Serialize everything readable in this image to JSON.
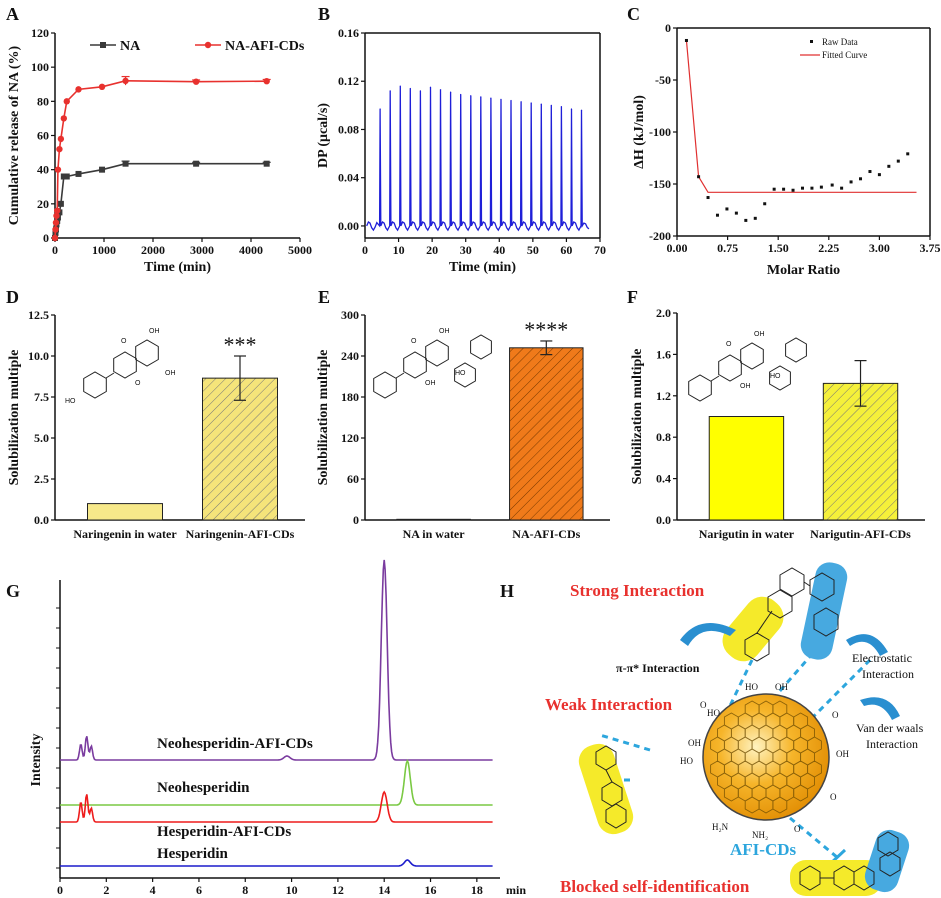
{
  "chart_data": [
    {
      "panel": "A",
      "type": "line",
      "xlabel": "Time (min)",
      "ylabel": "Cumulative release of NA (%)",
      "xlim": [
        0,
        5000
      ],
      "ylim": [
        0,
        120
      ],
      "xticks": [
        0,
        1000,
        2000,
        3000,
        4000,
        5000
      ],
      "yticks": [
        0,
        20,
        40,
        60,
        80,
        100,
        120
      ],
      "legend": "top-left",
      "series": [
        {
          "name": "NA",
          "color": "#3a3a3a",
          "marker": "square",
          "x": [
            0,
            10,
            20,
            30,
            45,
            60,
            90,
            120,
            180,
            240,
            480,
            960,
            1440,
            2880,
            4320
          ],
          "y": [
            0,
            3,
            5,
            8,
            10,
            12,
            15,
            20,
            36,
            36,
            37.5,
            40,
            43.5,
            43.5,
            43.5
          ],
          "err": [
            0,
            0,
            0,
            0,
            0,
            0,
            0,
            0,
            0,
            0,
            0,
            0,
            1.5,
            0.8,
            0.8
          ]
        },
        {
          "name": "NA-AFI-CDs",
          "color": "#e8312e",
          "marker": "circle",
          "x": [
            0,
            10,
            20,
            30,
            45,
            60,
            90,
            120,
            180,
            240,
            480,
            960,
            1440,
            2880,
            4320
          ],
          "y": [
            0,
            5,
            9,
            13,
            16,
            40,
            52,
            58,
            70,
            80,
            87,
            88.5,
            92,
            91.5,
            91.8
          ],
          "err": [
            0,
            0,
            0,
            0,
            0,
            0,
            0,
            0,
            0,
            0,
            0,
            0,
            2.5,
            1,
            1
          ]
        }
      ]
    },
    {
      "panel": "B",
      "type": "line",
      "xlabel": "Time (min)",
      "ylabel": "DP (μcal/s)",
      "xlim": [
        0,
        70
      ],
      "ylim": [
        -0.01,
        0.16
      ],
      "xticks": [
        0,
        10,
        20,
        30,
        40,
        50,
        60,
        70
      ],
      "yticks": [
        0.0,
        0.04,
        0.08,
        0.12,
        0.16
      ],
      "ytick_labels": [
        "0.00",
        "0.04",
        "0.08",
        "0.12",
        "0.16"
      ],
      "color": "#1f1fd8",
      "injection_times": [
        4.5,
        7.5,
        10.5,
        13.5,
        16.5,
        19.5,
        22.5,
        25.5,
        28.5,
        31.5,
        34.5,
        37.5,
        40.5,
        43.5,
        46.5,
        49.5,
        52.5,
        55.5,
        58.5,
        61.5,
        64.5
      ],
      "peak_heights": [
        0.097,
        0.112,
        0.116,
        0.114,
        0.112,
        0.115,
        0.113,
        0.111,
        0.109,
        0.108,
        0.107,
        0.106,
        0.105,
        0.104,
        0.103,
        0.102,
        0.101,
        0.1,
        0.099,
        0.097,
        0.096
      ]
    },
    {
      "panel": "C",
      "type": "scatter",
      "xlabel": "Molar Ratio",
      "ylabel": "ΔH (kJ/mol)",
      "xlim": [
        0,
        3.75
      ],
      "ylim": [
        -200,
        0
      ],
      "xticks": [
        0,
        0.75,
        1.5,
        2.25,
        3.0,
        3.75
      ],
      "xtick_labels": [
        "0.00",
        "0.75",
        "1.50",
        "2.25",
        "3.00",
        "3.75"
      ],
      "yticks": [
        -200,
        -150,
        -100,
        -50,
        0
      ],
      "legend": [
        "Raw Data",
        "Fitted Curve"
      ],
      "raw_data": {
        "x": [
          0.14,
          0.32,
          0.46,
          0.6,
          0.74,
          0.88,
          1.02,
          1.16,
          1.3,
          1.44,
          1.58,
          1.72,
          1.86,
          2.0,
          2.14,
          2.3,
          2.44,
          2.58,
          2.72,
          2.86,
          3.0,
          3.14,
          3.28,
          3.42
        ],
        "y": [
          -12,
          -143,
          -163,
          -180,
          -174,
          -178,
          -185,
          -183,
          -169,
          -155,
          -155,
          -156,
          -154,
          -154,
          -153,
          -151,
          -154,
          -148,
          -145,
          -138,
          -141,
          -133,
          -128,
          -121
        ]
      },
      "fitted_curve": {
        "x": [
          0.14,
          0.32,
          0.46,
          1.0,
          2.0,
          3.0,
          3.55
        ],
        "y": [
          -12,
          -143,
          -158,
          -158,
          -158,
          -158,
          -158
        ],
        "color": "#e03030"
      }
    },
    {
      "panel": "D",
      "type": "bar",
      "ylabel": "Solubilization multiple",
      "categories": [
        "Naringenin in water",
        "Naringenin-AFI-CDs"
      ],
      "values": [
        1.0,
        8.65
      ],
      "errors": [
        0,
        1.35
      ],
      "annotation": "***",
      "ylim": [
        0,
        12.5
      ],
      "yticks": [
        0,
        2.5,
        5.0,
        7.5,
        10.0,
        12.5
      ],
      "ytick_labels": [
        "0.0",
        "2.5",
        "5.0",
        "7.5",
        "10.0",
        "12.5"
      ],
      "colors": [
        "#f7e98a",
        "#f5e47a"
      ],
      "structure_labels": [
        "O",
        "OH",
        "O",
        "OH",
        "HO"
      ]
    },
    {
      "panel": "E",
      "type": "bar",
      "ylabel": "Solubilization multiple",
      "categories": [
        "NA in water",
        "NA-AFI-CDs"
      ],
      "values": [
        1.0,
        252
      ],
      "errors": [
        0,
        10
      ],
      "annotation": "****",
      "ylim": [
        0,
        300
      ],
      "yticks": [
        0,
        60,
        120,
        180,
        240,
        300
      ],
      "colors": [
        "#f07a1a",
        "#f07a1a"
      ],
      "structure_labels": [
        "O",
        "OH",
        "OH",
        "HO"
      ]
    },
    {
      "panel": "F",
      "type": "bar",
      "ylabel": "Solubilization multiple",
      "categories": [
        "Narigutin in water",
        "Narigutin-AFI-CDs"
      ],
      "values": [
        1.0,
        1.32
      ],
      "errors": [
        0,
        0.22
      ],
      "ylim": [
        0,
        2.0
      ],
      "yticks": [
        0,
        0.4,
        0.8,
        1.2,
        1.6,
        2.0
      ],
      "ytick_labels": [
        "0.0",
        "0.4",
        "0.8",
        "1.2",
        "1.6",
        "2.0"
      ],
      "colors": [
        "#ffff00",
        "#f5f03a"
      ],
      "structure_labels": [
        "O",
        "OH",
        "OH",
        "HO"
      ]
    },
    {
      "panel": "G",
      "type": "line",
      "xlabel": "min",
      "ylabel": "Intensity",
      "xlim": [
        0,
        19
      ],
      "xticks": [
        0,
        2,
        4,
        6,
        8,
        10,
        12,
        14,
        16,
        18
      ],
      "series": [
        {
          "name": "Neohesperidin-AFI-CDs",
          "color": "#7a3b9f",
          "peaks": [
            [
              0.9,
              0.08
            ],
            [
              1.15,
              0.12
            ],
            [
              1.35,
              0.07
            ],
            [
              9.8,
              0.02
            ],
            [
              14.0,
              1.0
            ]
          ]
        },
        {
          "name": "Neohesperidin",
          "color": "#7ac943",
          "peaks": [
            [
              15.0,
              0.22
            ]
          ]
        },
        {
          "name": "Hesperidin-AFI-CDs",
          "color": "#ee1c1c",
          "peaks": [
            [
              0.9,
              0.1
            ],
            [
              1.15,
              0.14
            ],
            [
              1.35,
              0.07
            ],
            [
              14.0,
              0.15
            ]
          ]
        },
        {
          "name": "Hesperidin",
          "color": "#1c1ccc",
          "peaks": [
            [
              15.0,
              0.03
            ]
          ]
        }
      ]
    }
  ],
  "panels": {
    "a": "A",
    "b": "B",
    "c": "C",
    "d": "D",
    "e": "E",
    "f": "F",
    "g": "G",
    "h": "H"
  },
  "schematic": {
    "title_strong": "Strong Interaction",
    "title_weak": "Weak Interaction",
    "title_blocked": "Blocked self-identification",
    "pi_interaction": "π-π* Interaction",
    "electrostatic_1": "Electrostatic",
    "electrostatic_2": "Interaction",
    "vdw_1": "Van der waals",
    "vdw_2": "Interaction",
    "particle_label": "AFI-CDs",
    "groups": [
      "HO",
      "HO",
      "OH",
      "OH",
      "HO",
      "OH",
      "H₂N",
      "NH₂",
      "O",
      "O",
      "O",
      "O"
    ],
    "colors": {
      "red": "#e8312e",
      "cyan": "#2da6dd",
      "yellow": "#f5ea2a",
      "blue": "#47a9e0",
      "orange": "#f4a623"
    }
  }
}
